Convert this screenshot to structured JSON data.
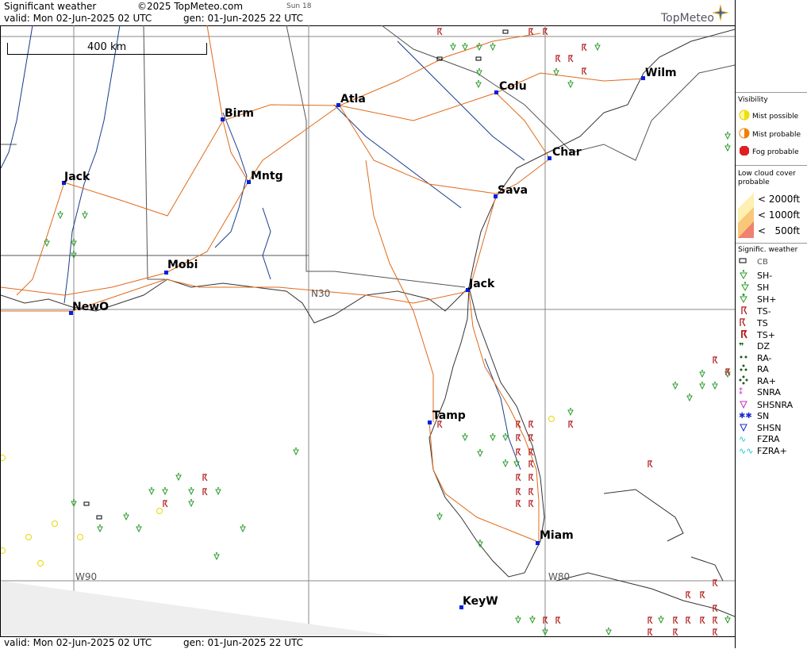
{
  "header": {
    "title": "Significant weather",
    "copyright": "©2025 TopMeteo.com",
    "day": "Sun 18",
    "valid": "valid:  Mon  02-Jun-2025  02 UTC",
    "gen": "gen: 01-Jun-2025 22 UTC",
    "brand": "TopMeteo"
  },
  "footer": {
    "valid": "valid:  Mon  02-Jun-2025  02 UTC",
    "gen": "gen: 01-Jun-2025 22 UTC"
  },
  "map": {
    "scale": "400 km",
    "grid_labels": {
      "n30": "N30",
      "w90": "W90",
      "w80": "W80"
    },
    "cities": [
      {
        "id": "birm",
        "name": "Birm"
      },
      {
        "id": "atla",
        "name": "Atla"
      },
      {
        "id": "colu",
        "name": "Colu"
      },
      {
        "id": "wilm",
        "name": "Wilm"
      },
      {
        "id": "char",
        "name": "Char"
      },
      {
        "id": "sava",
        "name": "Sava"
      },
      {
        "id": "jack1",
        "name": "Jack"
      },
      {
        "id": "mntg",
        "name": "Mntg"
      },
      {
        "id": "mobi",
        "name": "Mobi"
      },
      {
        "id": "neworleans",
        "name": "NewO"
      },
      {
        "id": "jack2",
        "name": "Jack"
      },
      {
        "id": "tamp",
        "name": "Tamp"
      },
      {
        "id": "miam",
        "name": "Miam"
      },
      {
        "id": "keyw",
        "name": "KeyW"
      }
    ]
  },
  "legend": {
    "visibility_title": "Visibility",
    "mist_possible": "Mist possible",
    "mist_probable": "Mist probable",
    "fog_probable": "Fog probable",
    "low_cloud_title": "Low cloud cover probable",
    "lc_2000": "< 2000ft",
    "lc_1000": "< 1000ft",
    "lc_500": "<   500ft",
    "sigwx_title": "Signific. weather",
    "items": [
      "CB",
      "SH-",
      "SH",
      "SH+",
      "TS-",
      "TS",
      "TS+",
      "DZ",
      "RA-",
      "RA",
      "RA+",
      "SNRA",
      "SHSNRA",
      "SN",
      "SHSN",
      "FZRA",
      "FZRA+"
    ],
    "colors": {
      "mist_possible": "#f0e000",
      "mist_probable": "#f08000",
      "fog_probable": "#e02020",
      "lc_2000": "#fdf0b0",
      "lc_1000": "#f8c878",
      "lc_500": "#f08070",
      "shower": "#2a9a2a",
      "thunder": "#b01818",
      "snow": "#1a2ad0",
      "snowrain": "#c030c0",
      "fzra": "#18c8d8"
    }
  }
}
